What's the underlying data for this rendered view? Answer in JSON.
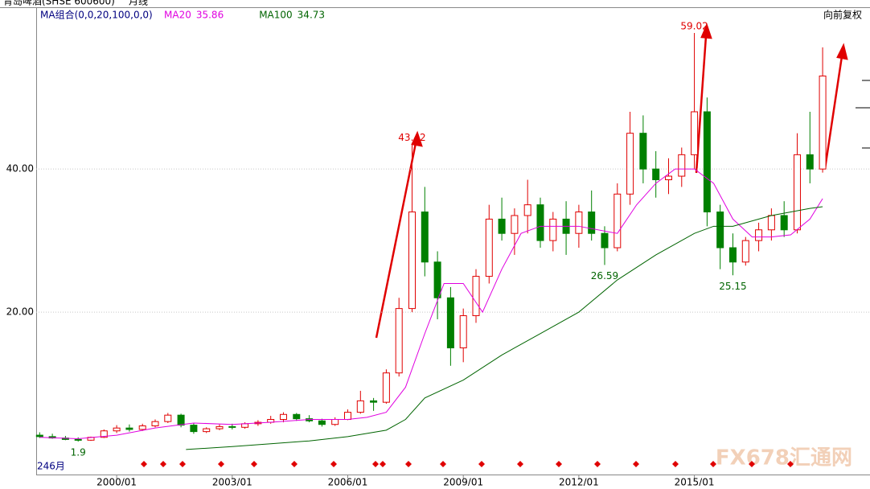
{
  "chart_data": {
    "type": "candlestick",
    "title": "青岛啤酒(SHSE 600600)",
    "period": "月线",
    "indicator": "MA组合(0,0,20,100,0,0)",
    "adjust": "向前复权",
    "count_label": "246月",
    "watermark": "FX678汇通网",
    "xlim": [
      1997.91,
      2019.56
    ],
    "xticks": [
      {
        "value": 2000,
        "label": "2000/01"
      },
      {
        "value": 2003,
        "label": "2003/01"
      },
      {
        "value": 2006,
        "label": "2006/01"
      },
      {
        "value": 2009,
        "label": "2009/01"
      },
      {
        "value": 2012,
        "label": "2012/01"
      },
      {
        "value": 2015,
        "label": "2015/01"
      }
    ],
    "ylim": [
      -2.7,
      62.5
    ],
    "yticks": [
      {
        "value": 20,
        "label": "20.00"
      },
      {
        "value": 40,
        "label": "40.00"
      }
    ],
    "grid": true,
    "up_color": "#e00000",
    "down_color": "#008000",
    "candles": {
      "x": [
        1998.0,
        1998.33,
        1998.67,
        1999.0,
        1999.33,
        1999.67,
        2000.0,
        2000.33,
        2000.67,
        2001.0,
        2001.33,
        2001.67,
        2002.0,
        2002.33,
        2002.67,
        2003.0,
        2003.33,
        2003.67,
        2004.0,
        2004.33,
        2004.67,
        2005.0,
        2005.33,
        2005.67,
        2006.0,
        2006.33,
        2006.67,
        2007.0,
        2007.33,
        2007.67,
        2008.0,
        2008.33,
        2008.67,
        2009.0,
        2009.33,
        2009.67,
        2010.0,
        2010.33,
        2010.67,
        2011.0,
        2011.33,
        2011.67,
        2012.0,
        2012.33,
        2012.67,
        2013.0,
        2013.33,
        2013.67,
        2014.0,
        2014.33,
        2014.67,
        2015.0,
        2015.33,
        2015.67,
        2016.0,
        2016.33,
        2016.67,
        2017.0,
        2017.33,
        2017.67,
        2018.0,
        2018.33
      ],
      "open": [
        2.8,
        2.6,
        2.4,
        2.2,
        2.1,
        2.5,
        3.4,
        3.8,
        3.6,
        4.1,
        4.7,
        5.6,
        4.2,
        3.3,
        3.7,
        4.0,
        3.9,
        4.4,
        4.6,
        5.0,
        5.7,
        5.1,
        4.8,
        4.3,
        5.0,
        6.0,
        7.6,
        7.4,
        11.5,
        20.5,
        34.0,
        27.0,
        22.0,
        15.0,
        19.5,
        25.0,
        33.0,
        31.0,
        33.5,
        35.0,
        30.0,
        33.0,
        31.0,
        34.0,
        31.0,
        29.0,
        36.5,
        45.0,
        40.0,
        38.5,
        39.0,
        42.0,
        48.0,
        34.0,
        29.0,
        27.0,
        30.0,
        31.5,
        33.5,
        31.5,
        42.0,
        40.0
      ],
      "high": [
        3.2,
        3.0,
        2.7,
        2.5,
        2.6,
        3.6,
        4.2,
        4.3,
        4.4,
        5.0,
        5.9,
        5.8,
        4.5,
        3.9,
        4.3,
        4.4,
        4.6,
        4.9,
        5.5,
        6.0,
        5.9,
        5.6,
        5.1,
        5.3,
        6.4,
        9.0,
        8.0,
        12.0,
        22.0,
        43.42,
        37.5,
        28.5,
        23.5,
        20.5,
        26.0,
        35.0,
        36.0,
        34.5,
        38.5,
        36.0,
        34.0,
        35.5,
        35.0,
        37.0,
        32.0,
        38.0,
        48.0,
        47.5,
        42.5,
        41.5,
        43.0,
        59.02,
        50.0,
        35.0,
        31.0,
        30.5,
        32.5,
        34.5,
        35.5,
        45.0,
        48.0,
        57.0
      ],
      "low": [
        2.4,
        2.3,
        2.1,
        1.9,
        2.0,
        2.4,
        3.1,
        3.3,
        3.4,
        3.9,
        4.5,
        3.9,
        3.0,
        3.1,
        3.5,
        3.6,
        3.7,
        4.1,
        4.4,
        4.6,
        4.8,
        4.6,
        4.0,
        4.1,
        4.9,
        5.8,
        6.2,
        7.2,
        11.0,
        20.0,
        25.0,
        19.0,
        12.5,
        13.0,
        18.5,
        24.0,
        30.0,
        28.0,
        31.0,
        29.0,
        28.5,
        28.0,
        29.0,
        30.0,
        26.59,
        28.5,
        35.0,
        38.0,
        36.0,
        36.5,
        37.5,
        40.0,
        32.0,
        26.0,
        25.15,
        26.5,
        28.5,
        30.0,
        30.5,
        31.0,
        38.0,
        39.5
      ],
      "close": [
        2.6,
        2.4,
        2.2,
        2.1,
        2.5,
        3.4,
        3.8,
        3.6,
        4.1,
        4.7,
        5.6,
        4.2,
        3.3,
        3.7,
        4.0,
        3.9,
        4.4,
        4.6,
        5.0,
        5.7,
        5.1,
        4.8,
        4.3,
        5.0,
        6.0,
        7.6,
        7.4,
        11.5,
        20.5,
        34.0,
        27.0,
        22.0,
        15.0,
        19.5,
        25.0,
        33.0,
        31.0,
        33.5,
        35.0,
        30.0,
        33.0,
        31.0,
        34.0,
        31.0,
        29.0,
        36.5,
        45.0,
        40.0,
        38.5,
        39.0,
        42.0,
        48.0,
        34.0,
        29.0,
        27.0,
        30.0,
        31.5,
        33.5,
        31.5,
        42.0,
        40.0,
        53.0
      ]
    },
    "series": [
      {
        "name": "MA20",
        "value_label": "35.86",
        "color": "#e000e0",
        "x": [
          1998,
          1999,
          2000,
          2001,
          2002,
          2003,
          2004,
          2005,
          2006,
          2006.5,
          2007,
          2007.5,
          2008,
          2008.5,
          2009,
          2009.5,
          2010,
          2010.5,
          2011,
          2012,
          2013,
          2013.5,
          2014,
          2014.5,
          2015,
          2015.5,
          2016,
          2016.5,
          2017,
          2017.5,
          2018,
          2018.33
        ],
        "values": [
          2.5,
          2.3,
          2.8,
          3.8,
          4.5,
          4.3,
          4.6,
          5.0,
          5.0,
          5.3,
          6.0,
          9.5,
          17,
          24,
          24,
          20,
          26,
          31,
          32,
          32,
          31,
          35,
          38,
          40,
          40,
          38,
          33,
          30.5,
          30.5,
          30.8,
          33,
          35.86
        ]
      },
      {
        "name": "MA100",
        "value_label": "34.73",
        "color": "#006400",
        "x": [
          2001.8,
          2003,
          2004,
          2005,
          2006,
          2007,
          2007.5,
          2008,
          2009,
          2010,
          2011,
          2012,
          2013,
          2014,
          2015,
          2015.5,
          2016,
          2017,
          2018,
          2018.33
        ],
        "values": [
          0.8,
          1.2,
          1.6,
          2.0,
          2.6,
          3.5,
          5.0,
          8.0,
          10.5,
          14.0,
          17.0,
          20.0,
          24.5,
          28.0,
          31.0,
          32.0,
          32.0,
          33.5,
          34.5,
          34.73
        ]
      }
    ],
    "price_labels": [
      43.42,
      59.02,
      26.59,
      25.15,
      1.9
    ]
  }
}
